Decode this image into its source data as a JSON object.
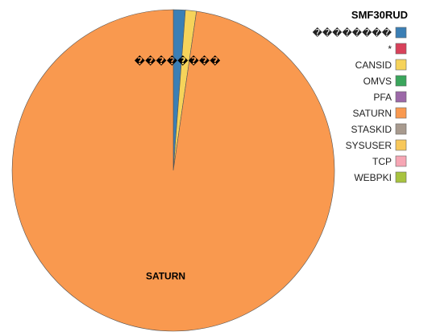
{
  "chart_data": {
    "type": "pie",
    "title": "SMF30RUD",
    "series": [
      {
        "name": "��������",
        "value": 1.2,
        "color": "#3b7fb5"
      },
      {
        "name": "*",
        "value": 0.0,
        "color": "#d8415a"
      },
      {
        "name": "CANSID",
        "value": 1.1,
        "color": "#f6d35a"
      },
      {
        "name": "OMVS",
        "value": 0.0,
        "color": "#3aa65c"
      },
      {
        "name": "PFA",
        "value": 0.0,
        "color": "#9c68a8"
      },
      {
        "name": "SATURN",
        "value": 97.7,
        "color": "#f9994f"
      },
      {
        "name": "STASKID",
        "value": 0.0,
        "color": "#a89a8e"
      },
      {
        "name": "SYSUSER",
        "value": 0.0,
        "color": "#f8c85a"
      },
      {
        "name": "TCP",
        "value": 0.0,
        "color": "#f6a6b4"
      },
      {
        "name": "WEBPKI",
        "value": 0.0,
        "color": "#a8c33f"
      }
    ],
    "slice_labels": [
      {
        "series_name": "��������",
        "text": "��������"
      },
      {
        "series_name": "SATURN",
        "text": "SATURN"
      }
    ],
    "legend": {
      "placement": "right",
      "title": "SMF30RUD"
    }
  }
}
